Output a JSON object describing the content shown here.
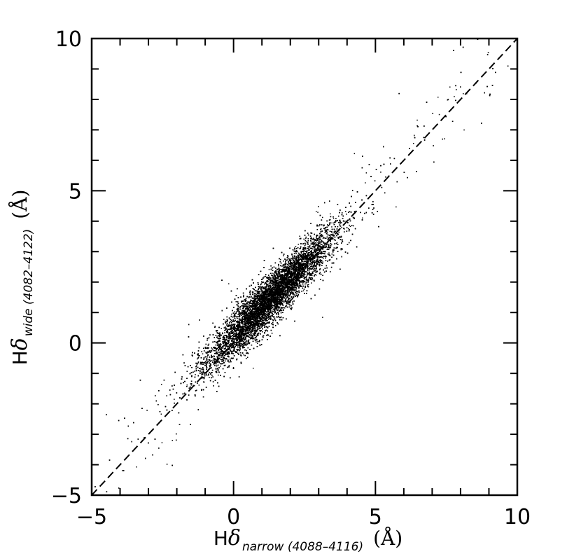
{
  "chart_data": {
    "type": "scatter",
    "xlabel": {
      "symbol": "H",
      "greek": "δ",
      "subscript": "narrow (4088–4116)",
      "unit": "(Å)"
    },
    "ylabel": {
      "symbol": "H",
      "greek": "δ",
      "subscript": "wide (4082–4122)",
      "unit": "(Å)"
    },
    "xlim": [
      -5,
      10
    ],
    "ylim": [
      -5,
      10
    ],
    "xticks": [
      -5,
      0,
      5,
      10
    ],
    "yticks": [
      -5,
      0,
      5,
      10
    ],
    "xtick_labels": [
      "−5",
      "0",
      "5",
      "10"
    ],
    "ytick_labels": [
      "−5",
      "0",
      "5",
      "10"
    ],
    "minor_tick_step": 1,
    "grid": false,
    "reference_line": {
      "style": "dashed",
      "slope": 1,
      "intercept": 0
    },
    "series": [
      {
        "point_count": 18000,
        "distribution": {
          "center": [
            1.3,
            1.5
          ],
          "range_along_diagonal": [
            -2.5,
            5.5
          ],
          "spread_perpendicular": 0.45,
          "outlier_range": [
            -4.5,
            9.5
          ]
        }
      }
    ]
  }
}
